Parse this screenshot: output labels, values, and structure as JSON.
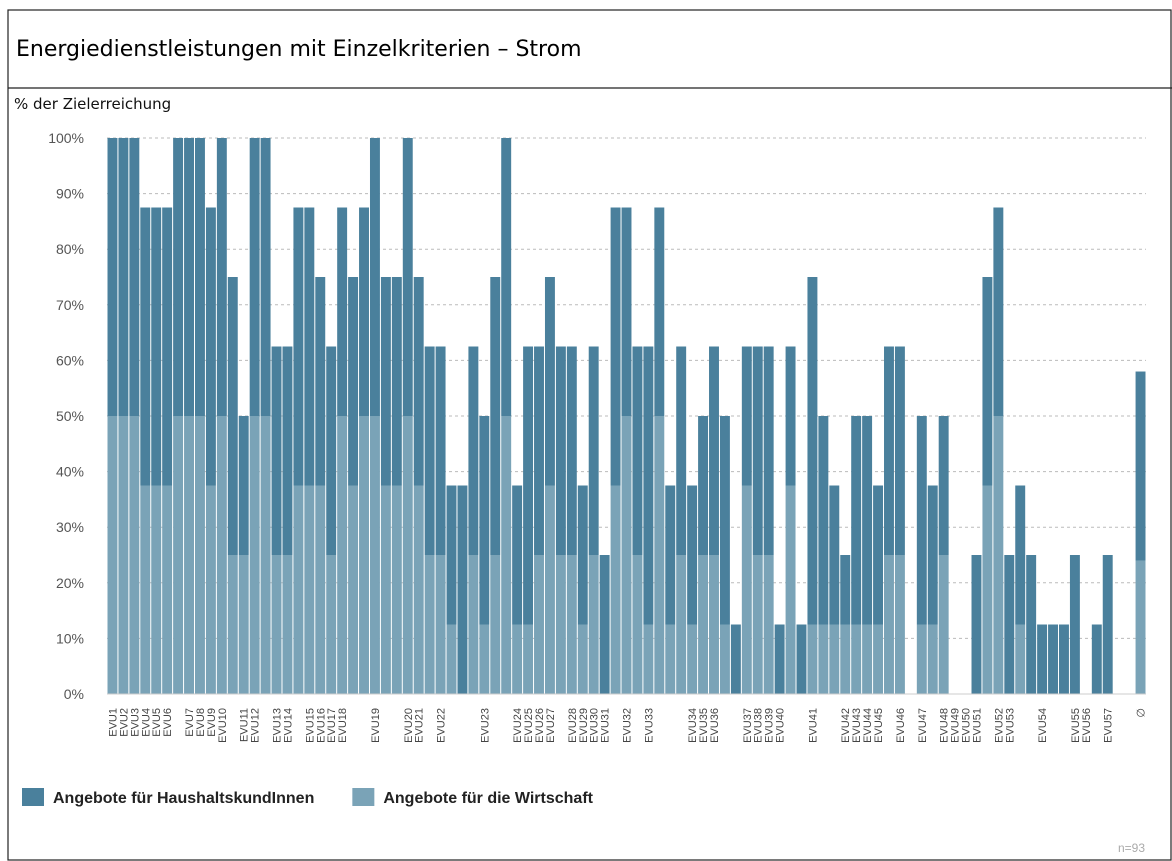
{
  "chart_data": {
    "type": "stacked_bar",
    "title": "Energiedienstleistungen mit Einzelkriterien – Strom",
    "ylabel": "% der Zielerreichung",
    "note": "n=93",
    "categories": [
      "EVU1",
      "EVU2",
      "EVU3",
      "EVU4",
      "EVU5",
      "EVU6",
      null,
      "EVU7",
      "EVU8",
      "EVU9",
      "EVU10",
      null,
      "EVU11",
      "EVU12",
      null,
      "EVU13",
      "EVU14",
      null,
      "EVU15",
      "EVU16",
      "EVU17",
      "EVU18",
      null,
      null,
      "EVU19",
      null,
      null,
      "EVU20",
      "EVU21",
      null,
      "EVU22",
      null,
      null,
      null,
      "EVU23",
      null,
      null,
      "EVU24",
      "EVU25",
      "EVU26",
      "EVU27",
      null,
      "EVU28",
      "EVU29",
      "EVU30",
      "EVU31",
      null,
      "EVU32",
      null,
      "EVU33",
      null,
      null,
      null,
      "EVU34",
      "EVU35",
      "EVU36",
      null,
      null,
      "EVU37",
      "EVU38",
      "EVU39",
      "EVU40",
      null,
      null,
      "EVU41",
      null,
      null,
      "EVU42",
      "EVU43",
      "EVU44",
      "EVU45",
      null,
      "EVU46",
      null,
      "EVU47",
      null,
      "EVU48",
      "EVU49",
      "EVU50",
      "EVU51",
      null,
      "EVU52",
      "EVU53",
      null,
      null,
      "EVU54",
      null,
      null,
      "EVU55",
      "EVU56",
      null,
      "EVU57",
      null,
      null,
      "∅"
    ],
    "series": [
      {
        "name": "Angebote für HaushaltskundInnen",
        "color": "#4a809c",
        "values": [
          50,
          50,
          50,
          50,
          50,
          50,
          50,
          50,
          50,
          50,
          50,
          50,
          25,
          50,
          50,
          37.5,
          37.5,
          50,
          50,
          37.5,
          37.5,
          37.5,
          37.5,
          37.5,
          50,
          37.5,
          37.5,
          50,
          37.5,
          37.5,
          37.5,
          25,
          37.5,
          37.5,
          37.5,
          50,
          50,
          25,
          50,
          37.5,
          37.5,
          37.5,
          37.5,
          25,
          37.5,
          25,
          50,
          37.5,
          37.5,
          50,
          37.5,
          25,
          37.5,
          25,
          25,
          37.5,
          37.5,
          12.5,
          25,
          37.5,
          37.5,
          12.5,
          25,
          12.5,
          62.5,
          37.5,
          25,
          12.5,
          37.5,
          37.5,
          25,
          37.5,
          37.5,
          0,
          37.5,
          25,
          25,
          0,
          0,
          25,
          37.5,
          37.5,
          25,
          25,
          25,
          12.5,
          12.5,
          12.5,
          25,
          0,
          12.5,
          25,
          0,
          0,
          34
        ]
      },
      {
        "name": "Angebote für die Wirtschaft",
        "color": "#7aa3b7",
        "values": [
          50,
          50,
          50,
          37.5,
          37.5,
          37.5,
          50,
          50,
          50,
          37.5,
          50,
          25,
          25,
          50,
          50,
          25,
          25,
          37.5,
          37.5,
          37.5,
          25,
          50,
          37.5,
          50,
          50,
          37.5,
          37.5,
          50,
          37.5,
          25,
          25,
          12.5,
          0,
          25,
          12.5,
          25,
          50,
          12.5,
          12.5,
          25,
          37.5,
          25,
          25,
          12.5,
          25,
          0,
          37.5,
          50,
          25,
          12.5,
          50,
          12.5,
          25,
          12.5,
          25,
          25,
          12.5,
          0,
          37.5,
          25,
          25,
          0,
          37.5,
          0,
          12.5,
          12.5,
          12.5,
          12.5,
          12.5,
          12.5,
          12.5,
          25,
          25,
          0,
          12.5,
          12.5,
          25,
          0,
          0,
          0,
          37.5,
          50,
          0,
          12.5,
          0,
          0,
          0,
          0,
          0,
          0,
          0,
          0,
          0,
          0,
          24
        ]
      }
    ],
    "ylim": [
      0,
      100
    ],
    "yticks": [
      {
        "value": 0,
        "label": "0%"
      },
      {
        "value": 10,
        "label": "10%"
      },
      {
        "value": 20,
        "label": "20%"
      },
      {
        "value": 30,
        "label": "30%"
      },
      {
        "value": 40,
        "label": "40%"
      },
      {
        "value": 50,
        "label": "50%"
      },
      {
        "value": 60,
        "label": "60%"
      },
      {
        "value": 70,
        "label": "70%"
      },
      {
        "value": 80,
        "label": "80%"
      },
      {
        "value": 90,
        "label": "90%"
      },
      {
        "value": 100,
        "label": "100%"
      }
    ],
    "grid": true
  }
}
